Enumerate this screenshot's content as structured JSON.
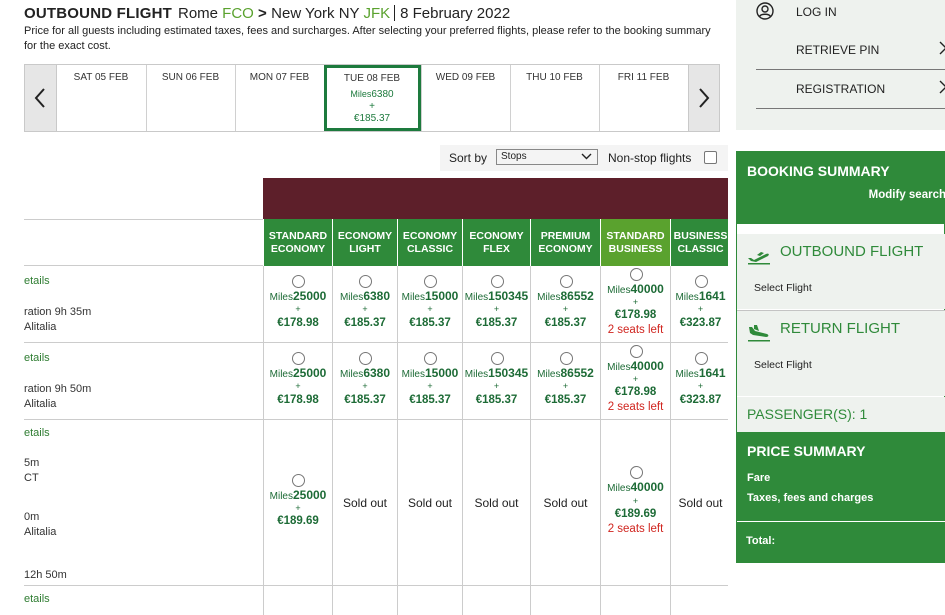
{
  "header": {
    "label": "OUTBOUND FLIGHT",
    "origin_city": "Rome",
    "origin_code": "FCO",
    "arrow": ">",
    "dest_city": "New York NY",
    "dest_code": "JFK",
    "date": "8 February 2022",
    "note": "Price for all guests including estimated taxes, fees and surcharges. After selecting your preferred flights, please refer to the booking summary for the exact cost."
  },
  "dates": [
    {
      "label": "SAT 05 FEB"
    },
    {
      "label": "SUN 06 FEB"
    },
    {
      "label": "MON 07 FEB"
    },
    {
      "label": "TUE 08 FEB",
      "selected": true,
      "miles_label": "Miles",
      "miles": "6380",
      "plus": "+",
      "price": "€185.37"
    },
    {
      "label": "WED 09 FEB"
    },
    {
      "label": "THU 10 FEB"
    },
    {
      "label": "FRI 11 FEB"
    }
  ],
  "sort": {
    "label": "Sort by",
    "value": "Stops",
    "nonstop_label": "Non-stop flights"
  },
  "columns": [
    "STANDARD ECONOMY",
    "ECONOMY LIGHT",
    "ECONOMY CLASSIC",
    "ECONOMY FLEX",
    "PREMIUM ECONOMY",
    "STANDARD BUSINESS",
    "BUSINESS CLASSIC"
  ],
  "miles_label": "Miles",
  "rows": [
    {
      "info": {
        "details": "etails",
        "lines": [
          "ration 9h 35m",
          "Alitalia"
        ]
      },
      "fares": [
        {
          "miles": "25000",
          "price": "€178.98"
        },
        {
          "miles": "6380",
          "price": "€185.37"
        },
        {
          "miles": "15000",
          "price": "€185.37"
        },
        {
          "miles": "150345",
          "price": "€185.37"
        },
        {
          "miles": "86552",
          "price": "€185.37"
        },
        {
          "miles": "40000",
          "price": "€178.98",
          "seats": "2 seats left"
        },
        {
          "miles": "1641",
          "price": "€323.87"
        }
      ]
    },
    {
      "info": {
        "details": "etails",
        "lines": [
          "ration 9h 50m",
          "Alitalia"
        ]
      },
      "fares": [
        {
          "miles": "25000",
          "price": "€178.98"
        },
        {
          "miles": "6380",
          "price": "€185.37"
        },
        {
          "miles": "15000",
          "price": "€185.37"
        },
        {
          "miles": "150345",
          "price": "€185.37"
        },
        {
          "miles": "86552",
          "price": "€185.37"
        },
        {
          "miles": "40000",
          "price": "€178.98",
          "seats": "2 seats left"
        },
        {
          "miles": "1641",
          "price": "€323.87"
        }
      ]
    },
    {
      "info": {
        "details": "etails",
        "lines": [
          "5m",
          "CT",
          "0m",
          "Alitalia",
          "12h 50m"
        ]
      },
      "fares": [
        {
          "miles": "25000",
          "price": "€189.69"
        },
        {
          "soldout": "Sold out"
        },
        {
          "soldout": "Sold out"
        },
        {
          "soldout": "Sold out"
        },
        {
          "soldout": "Sold out"
        },
        {
          "miles": "40000",
          "price": "€189.69",
          "seats": "2 seats left"
        },
        {
          "soldout": "Sold out"
        }
      ]
    },
    {
      "info": {
        "details": "etails",
        "lines": []
      },
      "fares": []
    }
  ],
  "account": {
    "login": "LOG IN",
    "retrieve": "RETRIEVE PIN",
    "register": "REGISTRATION"
  },
  "summary": {
    "title": "BOOKING SUMMARY",
    "modify": "Modify search",
    "outbound": "OUTBOUND FLIGHT",
    "outbound_sub": "Select Flight",
    "return": "RETURN FLIGHT",
    "return_sub": "Select Flight",
    "passengers": "PASSENGER(S): 1",
    "price_title": "PRICE SUMMARY",
    "fare": "Fare",
    "taxes": "Taxes, fees and charges",
    "total": "Total:"
  },
  "colors": {
    "brand_green": "#2f8a3a",
    "maroon": "#5d1f2a",
    "red": "#d0251f"
  }
}
